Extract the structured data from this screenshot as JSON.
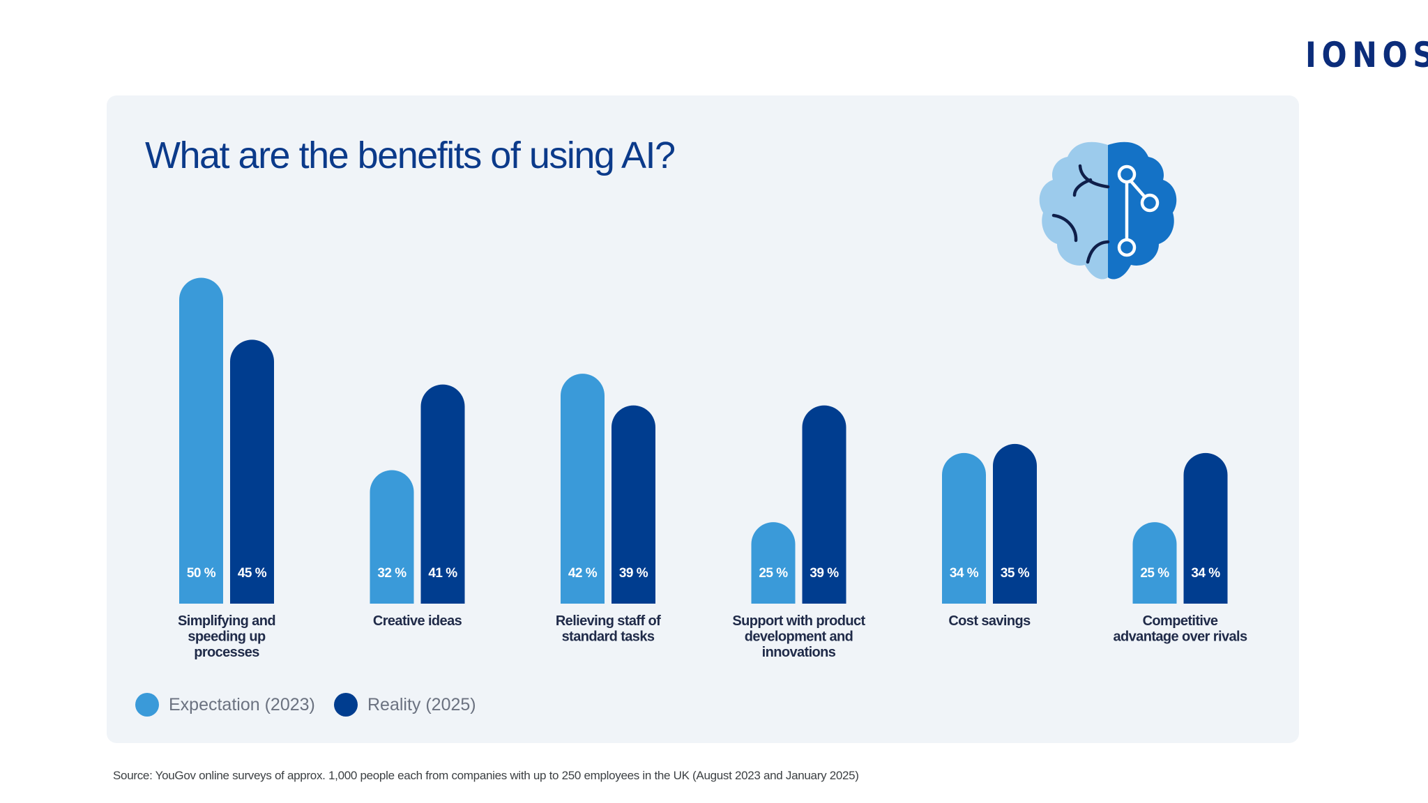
{
  "logo": "IONOS",
  "source": "Source: YouGov online surveys of approx. 1,000 people each from companies with up to 250 employees in the UK (August 2023 and January 2025)",
  "icon": "brain-circuit-icon",
  "colors": {
    "expectation": "#3a9ad9",
    "reality": "#003d8f",
    "title": "#0b3a8a",
    "background": "#f0f4f8"
  },
  "chart_data": {
    "type": "bar",
    "title": "What are the benefits of using AI?",
    "categories": [
      [
        "Simplifying and",
        "speeding up",
        "processes"
      ],
      [
        "Creative ideas"
      ],
      [
        "Relieving staff of",
        "standard tasks"
      ],
      [
        "Support with product",
        "development and",
        "innovations"
      ],
      [
        "Cost savings"
      ],
      [
        "Competitive",
        "advantage over rivals"
      ]
    ],
    "series": [
      {
        "name": "Expectation (2023)",
        "values": [
          50,
          32,
          42,
          25,
          34,
          25
        ],
        "labels": [
          "50 %",
          "32 %",
          "42 %",
          "25 %",
          "34 %",
          "25 %"
        ]
      },
      {
        "name": "Reality (2025)",
        "values": [
          45,
          41,
          39,
          39,
          35,
          34
        ],
        "labels": [
          "45 %",
          "41 %",
          "39 %",
          "39 %",
          "35 %",
          "34 %"
        ]
      }
    ],
    "unit": "%",
    "grid": false,
    "legend_placement": "bottom-left"
  }
}
